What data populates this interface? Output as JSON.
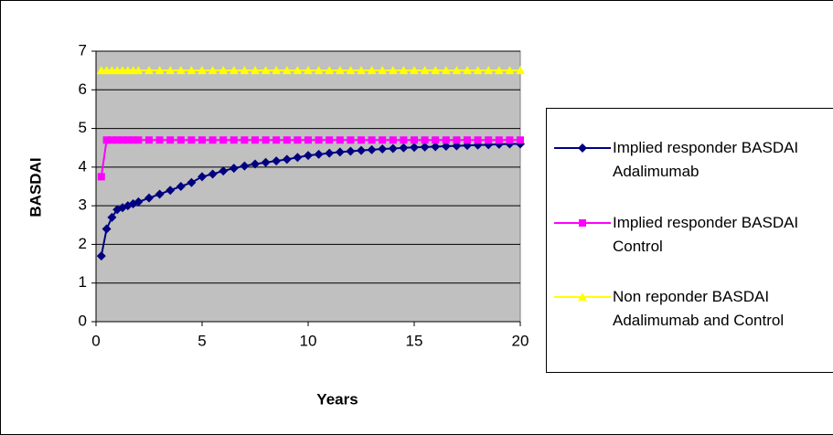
{
  "chart_data": {
    "type": "line",
    "x_label": "Years",
    "y_label": "BASDAI",
    "x": [
      0.25,
      0.5,
      0.75,
      1,
      1.25,
      1.5,
      1.75,
      2,
      2.5,
      3,
      3.5,
      4,
      4.5,
      5,
      5.5,
      6,
      6.5,
      7,
      7.5,
      8,
      8.5,
      9,
      9.5,
      10,
      10.5,
      11,
      11.5,
      12,
      12.5,
      13,
      13.5,
      14,
      14.5,
      15,
      15.5,
      16,
      16.5,
      17,
      17.5,
      18,
      18.5,
      19,
      19.5,
      20
    ],
    "series": [
      {
        "name": "Implied responder BASDAI Adalimumab",
        "color": "#000080",
        "marker": "diamond",
        "values": [
          1.7,
          2.4,
          2.7,
          2.9,
          2.95,
          3.0,
          3.05,
          3.1,
          3.2,
          3.3,
          3.4,
          3.5,
          3.6,
          3.75,
          3.82,
          3.9,
          3.97,
          4.03,
          4.08,
          4.12,
          4.16,
          4.2,
          4.25,
          4.3,
          4.33,
          4.36,
          4.39,
          4.41,
          4.43,
          4.45,
          4.47,
          4.48,
          4.5,
          4.51,
          4.52,
          4.53,
          4.54,
          4.55,
          4.56,
          4.57,
          4.58,
          4.59,
          4.6,
          4.6
        ]
      },
      {
        "name": "Implied responder BASDAI Control",
        "color": "#ff00ff",
        "marker": "square",
        "values": [
          3.75,
          4.7,
          4.7,
          4.7,
          4.7,
          4.7,
          4.7,
          4.7,
          4.7,
          4.7,
          4.7,
          4.7,
          4.7,
          4.7,
          4.7,
          4.7,
          4.7,
          4.7,
          4.7,
          4.7,
          4.7,
          4.7,
          4.7,
          4.7,
          4.7,
          4.7,
          4.7,
          4.7,
          4.7,
          4.7,
          4.7,
          4.7,
          4.7,
          4.7,
          4.7,
          4.7,
          4.7,
          4.7,
          4.7,
          4.7,
          4.7,
          4.7,
          4.7,
          4.7
        ]
      },
      {
        "name": "Non reponder BASDAI Adalimumab and Control",
        "color": "#ffff00",
        "marker": "triangle",
        "values": [
          6.5,
          6.5,
          6.5,
          6.5,
          6.5,
          6.5,
          6.5,
          6.5,
          6.5,
          6.5,
          6.5,
          6.5,
          6.5,
          6.5,
          6.5,
          6.5,
          6.5,
          6.5,
          6.5,
          6.5,
          6.5,
          6.5,
          6.5,
          6.5,
          6.5,
          6.5,
          6.5,
          6.5,
          6.5,
          6.5,
          6.5,
          6.5,
          6.5,
          6.5,
          6.5,
          6.5,
          6.5,
          6.5,
          6.5,
          6.5,
          6.5,
          6.5,
          6.5,
          6.5
        ]
      }
    ],
    "xlim": [
      0,
      20
    ],
    "xticks": [
      0,
      5,
      10,
      15,
      20
    ],
    "ylim": [
      0,
      7
    ],
    "yticks": [
      0,
      1,
      2,
      3,
      4,
      5,
      6,
      7
    ],
    "grid": true,
    "plot_background": "#c0c0c0",
    "legend": "right"
  }
}
